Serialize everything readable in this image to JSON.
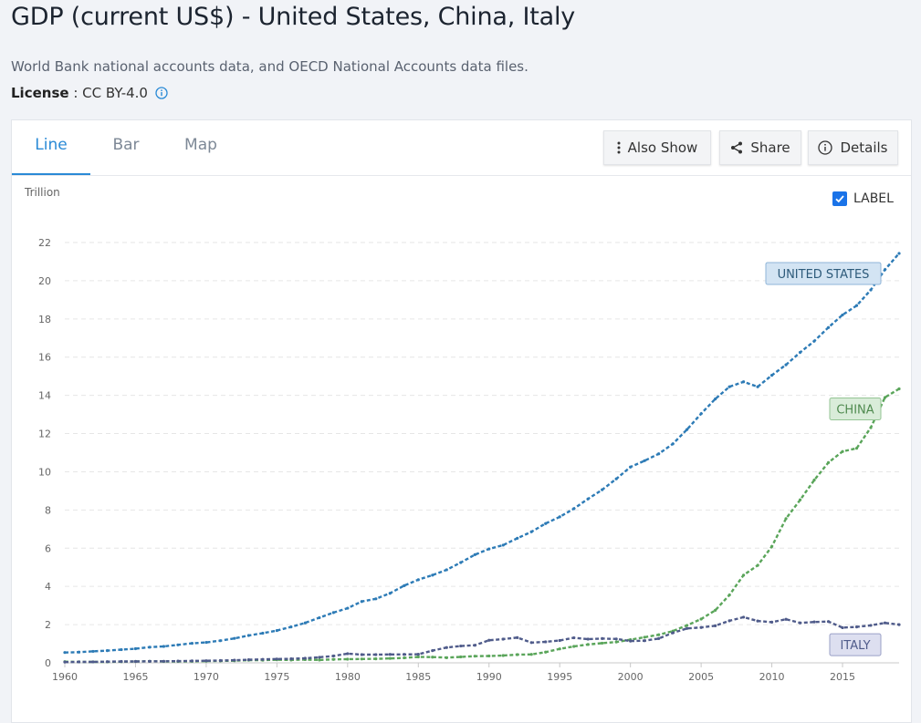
{
  "header": {
    "title": "GDP (current US$) - United States, China, Italy",
    "source": "World Bank national accounts data, and OECD National Accounts data files.",
    "license_label": "License",
    "license_sep": " : ",
    "license_value": "CC BY-4.0"
  },
  "tabs": [
    {
      "label": "Line"
    },
    {
      "label": "Bar"
    },
    {
      "label": "Map"
    }
  ],
  "toolbar": {
    "also_show": "Also Show",
    "share": "Share",
    "details": "Details"
  },
  "label_toggle": "LABEL",
  "colors": {
    "accent": "#2a8ad6",
    "us": "#2d7bb6",
    "china": "#5aa55a",
    "italy": "#4f5b8a"
  },
  "chart_data": {
    "type": "line",
    "ylabel": "Trillion",
    "ylim": [
      0,
      22
    ],
    "yticks": [
      "0",
      "2",
      "4",
      "6",
      "8",
      "10",
      "12",
      "14",
      "16",
      "18",
      "20",
      "22"
    ],
    "xlim": [
      1960,
      2019
    ],
    "xticks": [
      "1960",
      "1965",
      "1970",
      "1975",
      "1980",
      "1985",
      "1990",
      "1995",
      "2000",
      "2005",
      "2010",
      "2015"
    ],
    "grid": true,
    "x": [
      1960,
      1961,
      1962,
      1963,
      1964,
      1965,
      1966,
      1967,
      1968,
      1969,
      1970,
      1971,
      1972,
      1973,
      1974,
      1975,
      1976,
      1977,
      1978,
      1979,
      1980,
      1981,
      1982,
      1983,
      1984,
      1985,
      1986,
      1987,
      1988,
      1989,
      1990,
      1991,
      1992,
      1993,
      1994,
      1995,
      1996,
      1997,
      1998,
      1999,
      2000,
      2001,
      2002,
      2003,
      2004,
      2005,
      2006,
      2007,
      2008,
      2009,
      2010,
      2011,
      2012,
      2013,
      2014,
      2015,
      2016,
      2017,
      2018,
      2019
    ],
    "series": [
      {
        "name": "United States",
        "label": "UNITED STATES",
        "values": [
          0.54,
          0.56,
          0.6,
          0.64,
          0.69,
          0.74,
          0.82,
          0.86,
          0.94,
          1.02,
          1.07,
          1.16,
          1.28,
          1.43,
          1.55,
          1.69,
          1.88,
          2.09,
          2.36,
          2.63,
          2.86,
          3.21,
          3.35,
          3.64,
          4.04,
          4.35,
          4.59,
          4.87,
          5.25,
          5.66,
          5.96,
          6.16,
          6.52,
          6.86,
          7.29,
          7.64,
          8.07,
          8.58,
          9.06,
          9.63,
          10.25,
          10.58,
          10.94,
          11.46,
          12.21,
          13.04,
          13.81,
          14.45,
          14.71,
          14.45,
          15.05,
          15.6,
          16.25,
          16.84,
          17.55,
          18.21,
          18.7,
          19.52,
          20.58,
          21.43
        ]
      },
      {
        "name": "China",
        "label": "CHINA",
        "values": [
          0.06,
          0.05,
          0.05,
          0.05,
          0.06,
          0.07,
          0.08,
          0.07,
          0.07,
          0.08,
          0.09,
          0.1,
          0.11,
          0.14,
          0.14,
          0.16,
          0.15,
          0.17,
          0.15,
          0.18,
          0.19,
          0.2,
          0.21,
          0.23,
          0.26,
          0.31,
          0.3,
          0.27,
          0.31,
          0.35,
          0.36,
          0.38,
          0.43,
          0.44,
          0.56,
          0.73,
          0.86,
          0.96,
          1.03,
          1.09,
          1.21,
          1.34,
          1.47,
          1.66,
          1.96,
          2.29,
          2.75,
          3.55,
          4.59,
          5.1,
          6.09,
          7.55,
          8.53,
          9.57,
          10.48,
          11.06,
          11.23,
          12.31,
          13.89,
          14.34
        ]
      },
      {
        "name": "Italy",
        "label": "ITALY",
        "values": [
          0.04,
          0.05,
          0.05,
          0.06,
          0.07,
          0.07,
          0.08,
          0.08,
          0.09,
          0.1,
          0.11,
          0.12,
          0.14,
          0.16,
          0.18,
          0.2,
          0.21,
          0.24,
          0.29,
          0.36,
          0.48,
          0.43,
          0.43,
          0.44,
          0.44,
          0.45,
          0.64,
          0.8,
          0.88,
          0.92,
          1.18,
          1.24,
          1.32,
          1.06,
          1.1,
          1.17,
          1.31,
          1.24,
          1.27,
          1.25,
          1.14,
          1.16,
          1.27,
          1.57,
          1.8,
          1.85,
          1.94,
          2.2,
          2.39,
          2.19,
          2.13,
          2.28,
          2.09,
          2.14,
          2.16,
          1.84,
          1.88,
          1.96,
          2.09,
          2.0
        ]
      }
    ]
  }
}
